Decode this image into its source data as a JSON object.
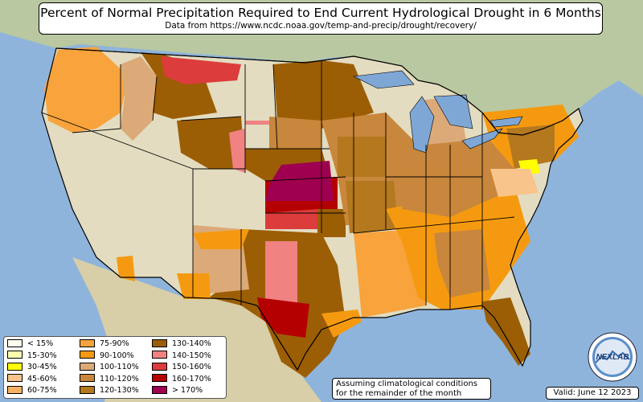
{
  "header": {
    "title": "Percent of Normal Precipitation Required to End Current Hydrological Drought in 6 Months",
    "subtitle": "Data from https://www.ncdc.noaa.gov/temp-and-precip/drought/recovery/"
  },
  "legend": {
    "items": [
      {
        "label": "< 15%",
        "color": "#fffff0"
      },
      {
        "label": "15-30%",
        "color": "#ffffb0"
      },
      {
        "label": "30-45%",
        "color": "#ffff00"
      },
      {
        "label": "45-60%",
        "color": "#f8c48c"
      },
      {
        "label": "60-75%",
        "color": "#f5b264"
      },
      {
        "label": "75-90%",
        "color": "#f8a33c"
      },
      {
        "label": "90-100%",
        "color": "#f59a10"
      },
      {
        "label": "100-110%",
        "color": "#dcaa78"
      },
      {
        "label": "110-120%",
        "color": "#c8873c"
      },
      {
        "label": "120-130%",
        "color": "#b4781e"
      },
      {
        "label": "130-140%",
        "color": "#9b5e05"
      },
      {
        "label": "140-150%",
        "color": "#f08282"
      },
      {
        "label": "150-160%",
        "color": "#dc3c3c"
      },
      {
        "label": "160-170%",
        "color": "#b40000"
      },
      {
        "label": "> 170%",
        "color": "#a00050"
      }
    ]
  },
  "footer": {
    "assumption": "Assuming climatological conditions for the remainder of the month",
    "valid": "Valid: June 12 2023"
  },
  "logo": {
    "text": "NEXLAB"
  },
  "colors": {
    "ocean": "#8fb4dc",
    "land": "#e3dcc0",
    "lakes": "#7ea7d6",
    "border": "#000000"
  }
}
